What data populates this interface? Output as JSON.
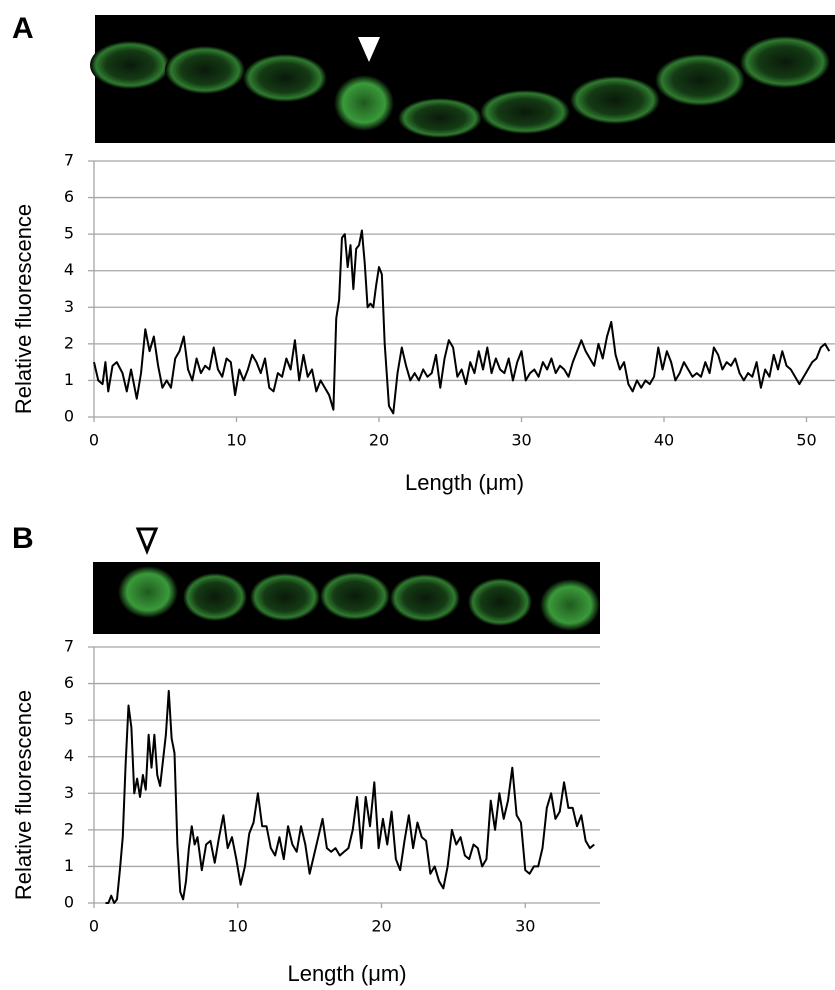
{
  "chart_data": [
    {
      "type": "line",
      "title": "A",
      "xlabel": "Length (μm)",
      "ylabel": "Relative fluorescence",
      "color": "#000000",
      "xlim": [
        0,
        52
      ],
      "ylim": [
        0,
        7
      ],
      "xticks": [
        0,
        10,
        20,
        30,
        40,
        50
      ],
      "yticks": [
        0,
        1,
        2,
        3,
        4,
        5,
        6,
        7
      ],
      "grid": true,
      "x": [
        0,
        0.3,
        0.6,
        0.8,
        1.0,
        1.3,
        1.6,
        2.0,
        2.3,
        2.6,
        3.0,
        3.3,
        3.6,
        3.9,
        4.2,
        4.5,
        4.8,
        5.1,
        5.4,
        5.7,
        6.0,
        6.3,
        6.6,
        6.9,
        7.2,
        7.5,
        7.8,
        8.1,
        8.4,
        8.7,
        9.0,
        9.3,
        9.6,
        9.9,
        10.2,
        10.5,
        10.8,
        11.1,
        11.4,
        11.7,
        12.0,
        12.3,
        12.6,
        12.9,
        13.2,
        13.5,
        13.8,
        14.1,
        14.4,
        14.7,
        15.0,
        15.3,
        15.6,
        15.9,
        16.2,
        16.5,
        16.8,
        17.0,
        17.2,
        17.4,
        17.6,
        17.8,
        18.0,
        18.2,
        18.4,
        18.6,
        18.8,
        19.0,
        19.2,
        19.4,
        19.6,
        19.8,
        20.0,
        20.2,
        20.4,
        20.7,
        21.0,
        21.3,
        21.6,
        21.9,
        22.2,
        22.5,
        22.8,
        23.1,
        23.4,
        23.7,
        24.0,
        24.3,
        24.6,
        24.9,
        25.2,
        25.5,
        25.8,
        26.1,
        26.4,
        26.7,
        27.0,
        27.3,
        27.6,
        27.9,
        28.2,
        28.5,
        28.8,
        29.1,
        29.4,
        29.7,
        30.0,
        30.3,
        30.6,
        30.9,
        31.2,
        31.5,
        31.8,
        32.1,
        32.4,
        32.7,
        33.0,
        33.3,
        33.6,
        33.9,
        34.2,
        34.5,
        34.8,
        35.1,
        35.4,
        35.7,
        36.0,
        36.3,
        36.6,
        36.9,
        37.2,
        37.5,
        37.8,
        38.1,
        38.4,
        38.7,
        39.0,
        39.3,
        39.6,
        39.9,
        40.2,
        40.5,
        40.8,
        41.1,
        41.4,
        41.7,
        42.0,
        42.3,
        42.6,
        42.9,
        43.2,
        43.5,
        43.8,
        44.1,
        44.4,
        44.7,
        45.0,
        45.3,
        45.6,
        45.9,
        46.2,
        46.5,
        46.8,
        47.1,
        47.4,
        47.7,
        48.0,
        48.3,
        48.6,
        48.9,
        49.2,
        49.5,
        49.8,
        50.1,
        50.4,
        50.7,
        51.0,
        51.3,
        51.6
      ],
      "series": [
        {
          "color": "#000000",
          "values": [
            1.5,
            1.0,
            0.9,
            1.5,
            0.7,
            1.4,
            1.5,
            1.2,
            0.7,
            1.3,
            0.5,
            1.2,
            2.4,
            1.8,
            2.2,
            1.4,
            0.8,
            1.0,
            0.8,
            1.6,
            1.8,
            2.2,
            1.3,
            1.0,
            1.6,
            1.2,
            1.4,
            1.3,
            1.9,
            1.3,
            1.1,
            1.6,
            1.5,
            0.6,
            1.3,
            1.0,
            1.3,
            1.7,
            1.5,
            1.2,
            1.6,
            0.8,
            0.7,
            1.2,
            1.1,
            1.6,
            1.3,
            2.1,
            1.0,
            1.7,
            1.1,
            1.3,
            0.7,
            1.0,
            0.8,
            0.6,
            0.2,
            2.7,
            3.2,
            4.9,
            5.0,
            4.1,
            4.7,
            3.5,
            4.6,
            4.7,
            5.1,
            4.2,
            3.0,
            3.1,
            3.0,
            3.6,
            4.1,
            3.9,
            2.0,
            0.3,
            0.1,
            1.2,
            1.9,
            1.4,
            1.0,
            1.2,
            1.0,
            1.3,
            1.1,
            1.2,
            1.7,
            0.8,
            1.6,
            2.1,
            1.9,
            1.1,
            1.3,
            0.9,
            1.5,
            1.2,
            1.8,
            1.3,
            1.9,
            1.2,
            1.6,
            1.3,
            1.2,
            1.6,
            1.0,
            1.5,
            1.8,
            1.0,
            1.2,
            1.3,
            1.1,
            1.5,
            1.3,
            1.6,
            1.2,
            1.4,
            1.3,
            1.1,
            1.5,
            1.8,
            2.1,
            1.8,
            1.6,
            1.4,
            2.0,
            1.6,
            2.2,
            2.6,
            1.7,
            1.3,
            1.5,
            0.9,
            0.7,
            1.0,
            0.8,
            1.0,
            0.9,
            1.1,
            1.9,
            1.3,
            1.8,
            1.5,
            1.0,
            1.2,
            1.5,
            1.3,
            1.1,
            1.2,
            1.1,
            1.5,
            1.2,
            1.9,
            1.7,
            1.3,
            1.5,
            1.4,
            1.6,
            1.2,
            1.0,
            1.2,
            1.1,
            1.5,
            0.8,
            1.3,
            1.1,
            1.7,
            1.3,
            1.8,
            1.4,
            1.3,
            1.1,
            0.9,
            1.1,
            1.3,
            1.5,
            1.6,
            1.9,
            2.0,
            1.8
          ]
        }
      ]
    },
    {
      "type": "line",
      "title": "B",
      "xlabel": "Length (μm)",
      "ylabel": "Relative fluorescence",
      "color": "#000000",
      "xlim": [
        0,
        35.2
      ],
      "ylim": [
        0,
        7
      ],
      "xticks": [
        0,
        10,
        20,
        30
      ],
      "yticks": [
        0,
        1,
        2,
        3,
        4,
        5,
        6,
        7
      ],
      "grid": true,
      "x": [
        0.8,
        1.0,
        1.2,
        1.4,
        1.6,
        1.8,
        2.0,
        2.2,
        2.4,
        2.6,
        2.8,
        3.0,
        3.2,
        3.4,
        3.6,
        3.8,
        4.0,
        4.2,
        4.4,
        4.6,
        4.8,
        5.0,
        5.2,
        5.4,
        5.6,
        5.8,
        6.0,
        6.2,
        6.4,
        6.6,
        6.8,
        7.0,
        7.2,
        7.5,
        7.8,
        8.1,
        8.4,
        8.7,
        9.0,
        9.3,
        9.6,
        9.9,
        10.2,
        10.5,
        10.8,
        11.1,
        11.4,
        11.7,
        12.0,
        12.3,
        12.6,
        12.9,
        13.2,
        13.5,
        13.8,
        14.1,
        14.4,
        14.7,
        15.0,
        15.3,
        15.6,
        15.9,
        16.2,
        16.5,
        16.8,
        17.1,
        17.4,
        17.7,
        18.0,
        18.3,
        18.6,
        18.9,
        19.2,
        19.5,
        19.8,
        20.1,
        20.4,
        20.7,
        21.0,
        21.3,
        21.6,
        21.9,
        22.2,
        22.5,
        22.8,
        23.1,
        23.4,
        23.7,
        24.0,
        24.3,
        24.6,
        24.9,
        25.2,
        25.5,
        25.8,
        26.1,
        26.4,
        26.7,
        27.0,
        27.3,
        27.6,
        27.9,
        28.2,
        28.5,
        28.8,
        29.1,
        29.4,
        29.7,
        30.0,
        30.3,
        30.6,
        30.9,
        31.2,
        31.5,
        31.8,
        32.1,
        32.4,
        32.7,
        33.0,
        33.3,
        33.6,
        33.9,
        34.2,
        34.5,
        34.8
      ],
      "series": [
        {
          "color": "#000000",
          "values": [
            0,
            0.0,
            0.2,
            0,
            0.1,
            0.9,
            1.8,
            3.8,
            5.4,
            4.8,
            3.0,
            3.4,
            2.9,
            3.5,
            3.1,
            4.6,
            3.7,
            4.6,
            3.5,
            3.2,
            3.9,
            4.6,
            5.8,
            4.5,
            4.1,
            1.6,
            0.3,
            0.1,
            0.6,
            1.5,
            2.1,
            1.6,
            1.8,
            0.9,
            1.6,
            1.7,
            1.1,
            1.8,
            2.4,
            1.5,
            1.8,
            1.2,
            0.5,
            1.0,
            1.9,
            2.2,
            3.0,
            2.1,
            2.1,
            1.5,
            1.3,
            1.8,
            1.2,
            2.1,
            1.6,
            1.4,
            2.1,
            1.6,
            0.8,
            1.3,
            1.8,
            2.3,
            1.5,
            1.4,
            1.5,
            1.3,
            1.4,
            1.5,
            2.0,
            2.9,
            1.5,
            2.9,
            2.1,
            3.3,
            1.5,
            2.3,
            1.6,
            2.5,
            1.2,
            0.9,
            1.7,
            2.4,
            1.5,
            2.2,
            1.8,
            1.7,
            0.8,
            1.0,
            0.6,
            0.4,
            1.0,
            2.0,
            1.6,
            1.8,
            1.3,
            1.2,
            1.6,
            1.5,
            1.0,
            1.2,
            2.8,
            2.0,
            3.0,
            2.3,
            2.8,
            3.7,
            2.4,
            2.2,
            0.9,
            0.8,
            1.0,
            1.0,
            1.5,
            2.6,
            3.0,
            2.3,
            2.5,
            3.3,
            2.6,
            2.6,
            2.1,
            2.4,
            1.7,
            1.5,
            1.6
          ]
        }
      ]
    }
  ]
}
